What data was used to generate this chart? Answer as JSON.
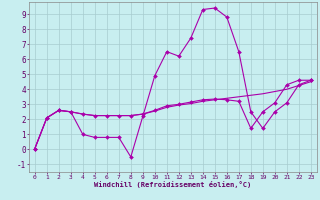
{
  "xlabel": "Windchill (Refroidissement éolien,°C)",
  "background_color": "#c8eef0",
  "grid_color": "#a8ccd0",
  "line_color": "#aa00aa",
  "xlim": [
    -0.5,
    23.5
  ],
  "ylim": [
    -1.5,
    9.8
  ],
  "xticks": [
    0,
    1,
    2,
    3,
    4,
    5,
    6,
    7,
    8,
    9,
    10,
    11,
    12,
    13,
    14,
    15,
    16,
    17,
    18,
    19,
    20,
    21,
    22,
    23
  ],
  "yticks": [
    -1,
    0,
    1,
    2,
    3,
    4,
    5,
    6,
    7,
    8,
    9
  ],
  "series1_x": [
    0,
    1,
    2,
    3,
    4,
    5,
    6,
    7,
    8,
    9,
    10,
    11,
    12,
    13,
    14,
    15,
    16,
    17,
    18,
    19,
    20,
    21,
    22,
    23
  ],
  "series1_y": [
    0.05,
    2.1,
    2.6,
    2.5,
    1.0,
    0.8,
    0.8,
    0.8,
    -0.5,
    2.2,
    4.9,
    6.5,
    6.2,
    7.4,
    9.3,
    9.4,
    8.8,
    6.5,
    2.5,
    1.4,
    2.5,
    3.1,
    4.3,
    4.6
  ],
  "series2_x": [
    0,
    1,
    2,
    3,
    4,
    5,
    6,
    7,
    8,
    9,
    10,
    11,
    12,
    13,
    14,
    15,
    16,
    17,
    18,
    19,
    20,
    21,
    22,
    23
  ],
  "series2_y": [
    0.05,
    2.1,
    2.6,
    2.5,
    2.35,
    2.25,
    2.25,
    2.25,
    2.25,
    2.35,
    2.55,
    2.8,
    2.95,
    3.05,
    3.2,
    3.3,
    3.4,
    3.5,
    3.6,
    3.7,
    3.85,
    4.0,
    4.25,
    4.5
  ],
  "series3_x": [
    0,
    1,
    2,
    3,
    4,
    5,
    6,
    7,
    8,
    9,
    10,
    11,
    12,
    13,
    14,
    15,
    16,
    17,
    18,
    19,
    20,
    21,
    22,
    23
  ],
  "series3_y": [
    0.05,
    2.1,
    2.6,
    2.5,
    2.35,
    2.25,
    2.25,
    2.25,
    2.25,
    2.35,
    2.6,
    2.9,
    3.0,
    3.15,
    3.3,
    3.35,
    3.3,
    3.2,
    1.4,
    2.5,
    3.1,
    4.3,
    4.6,
    4.6
  ]
}
